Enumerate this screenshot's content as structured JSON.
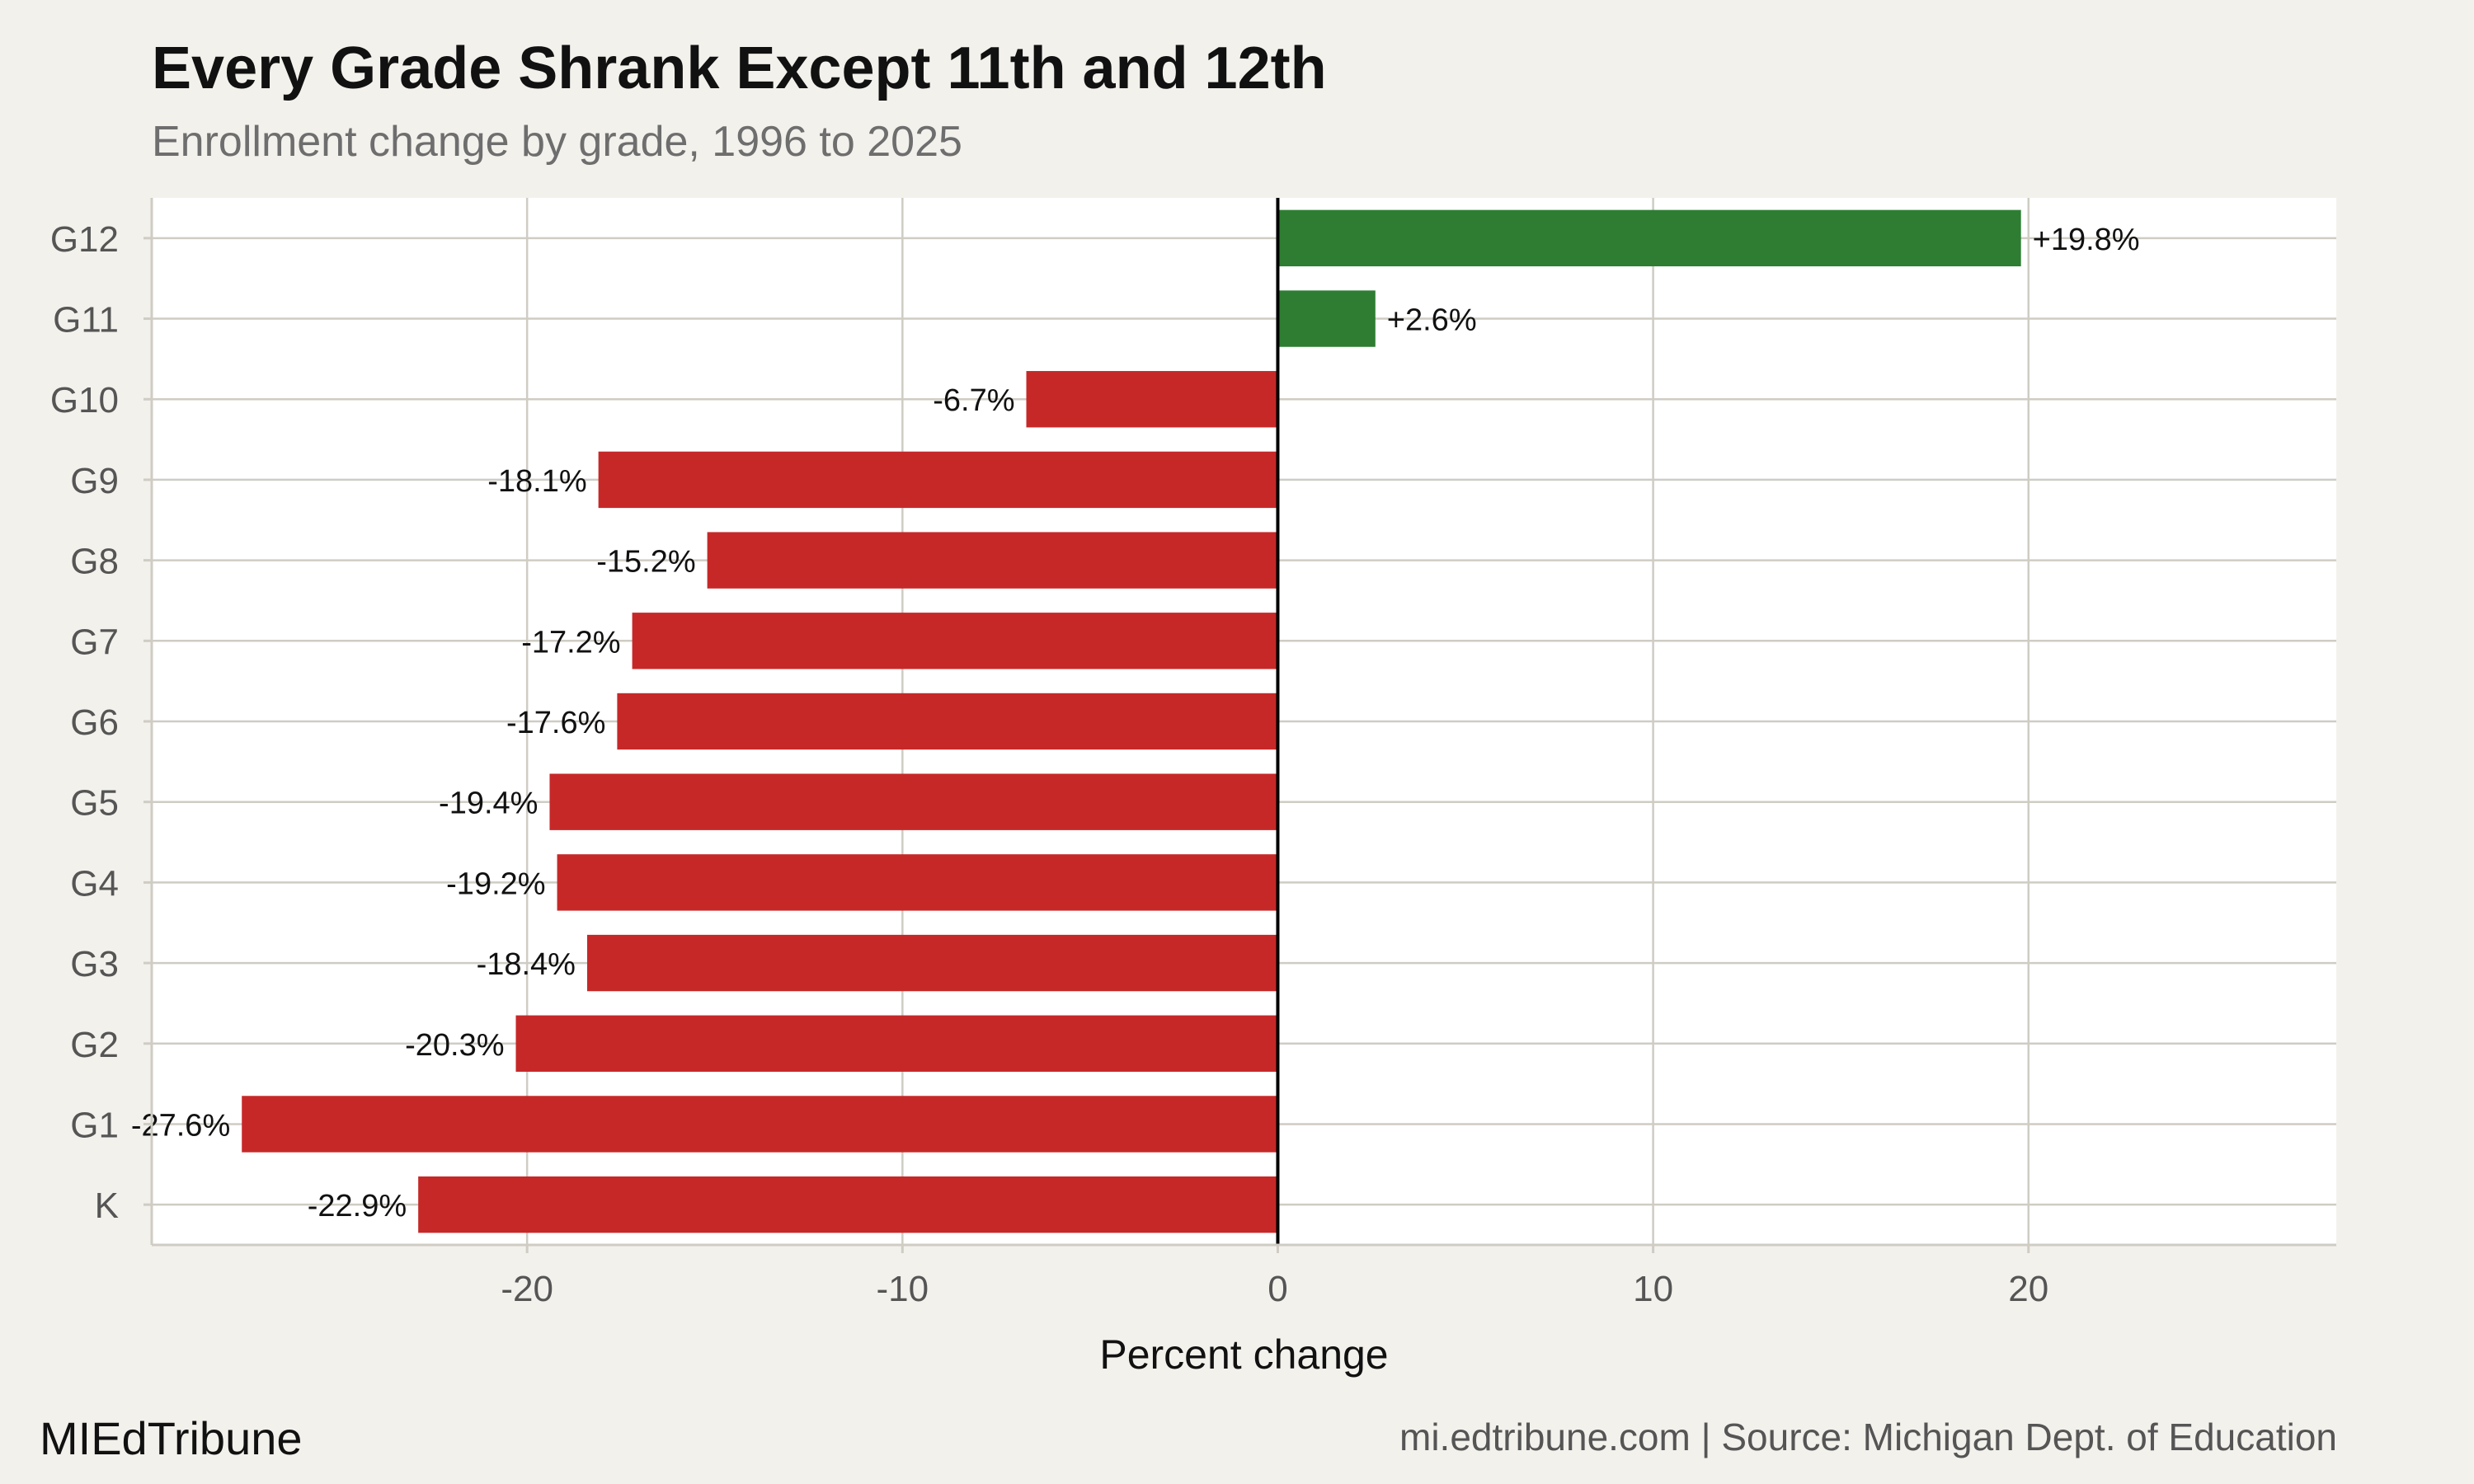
{
  "title": "Every Grade Shrank Except 11th and 12th",
  "subtitle": "Enrollment change by grade, 1996 to 2025",
  "brand": "MIEdTribune",
  "source": "mi.edtribune.com | Source: Michigan Dept. of Education",
  "colors": {
    "background": "#f3f1ec",
    "panel": "#ffffff",
    "grid": "#cfccc4",
    "positive": "#2e7d32",
    "negative": "#c62828",
    "zero_line": "#000000"
  },
  "chart_data": {
    "type": "bar",
    "orientation": "horizontal",
    "categories": [
      "K",
      "G1",
      "G2",
      "G3",
      "G4",
      "G5",
      "G6",
      "G7",
      "G8",
      "G9",
      "G10",
      "G11",
      "G12"
    ],
    "values": [
      -22.9,
      -27.6,
      -20.3,
      -18.4,
      -19.2,
      -19.4,
      -17.6,
      -17.2,
      -15.2,
      -18.1,
      -6.7,
      2.6,
      19.8
    ],
    "labels": [
      "-22.9%",
      "-27.6%",
      "-20.3%",
      "-18.4%",
      "-19.2%",
      "-19.4%",
      "-17.6%",
      "-17.2%",
      "-15.2%",
      "-18.1%",
      "-6.7%",
      "+2.6%",
      "+19.8%"
    ],
    "xlabel": "Percent change",
    "ylabel": "",
    "xlim": [
      -30,
      28.2
    ],
    "xticks": [
      -20,
      -10,
      0,
      10,
      20
    ],
    "xtick_labels": [
      "-20",
      "-10",
      "0",
      "10",
      "20"
    ],
    "grid": true,
    "legend": "none"
  }
}
